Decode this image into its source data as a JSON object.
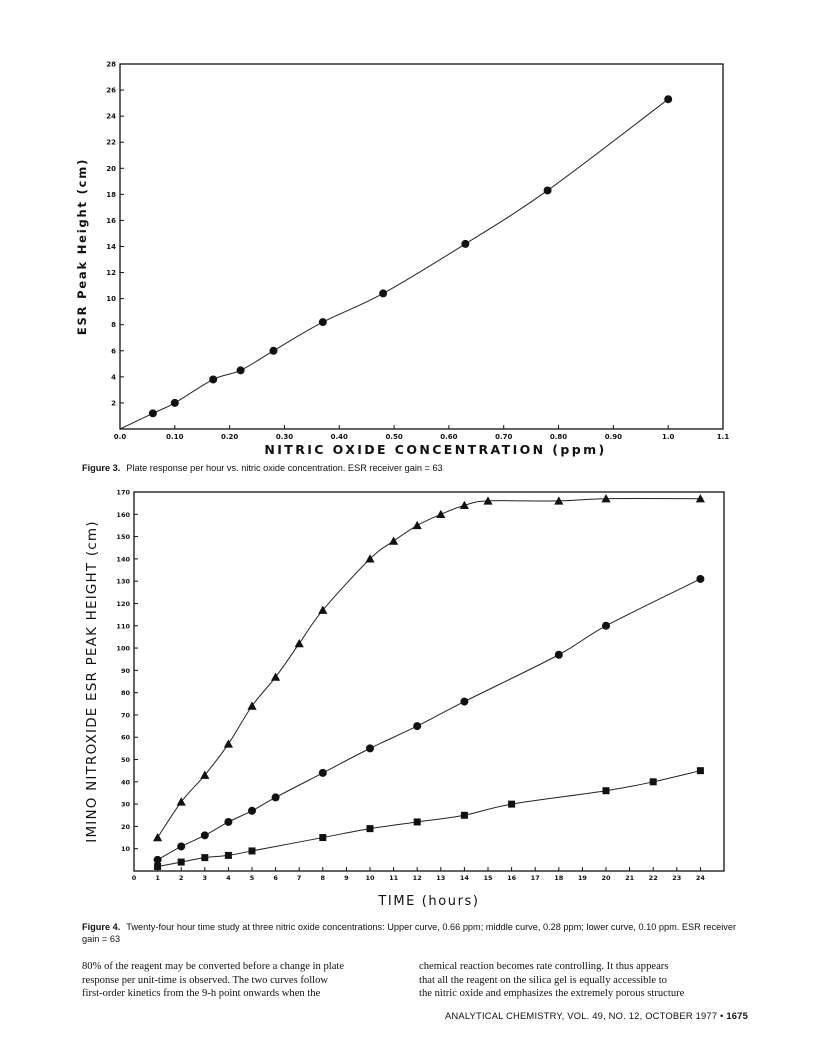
{
  "figure3": {
    "caption_label": "Figure 3.",
    "caption_text": "Plate response per hour vs. nitric oxide concentration. ESR receiver gain = 63"
  },
  "figure4": {
    "caption_label": "Figure 4.",
    "caption_text": "Twenty-four hour time study at three nitric oxide concentrations: Upper curve, 0.66 ppm; middle curve, 0.28 ppm; lower curve, 0.10 ppm. ESR receiver gain = 63"
  },
  "body": {
    "left_lines": [
      "80% of the reagent may be converted before a change in plate",
      "response per unit-time is observed. The two curves follow",
      "first-order kinetics from the 9-h point onwards when the"
    ],
    "right_lines": [
      "chemical reaction becomes rate controlling. It thus appears",
      "that all the reagent on the silica gel is equally accessible to",
      "the nitric oxide and emphasizes the extremely porous structure"
    ]
  },
  "footer": {
    "journal": "ANALYTICAL CHEMISTRY, VOL. 49, NO. 12, OCTOBER 1977 •",
    "page_number": "1675"
  },
  "chart_data": [
    {
      "type": "scatter",
      "xlabel": "NITRIC OXIDE CONCENTRATION (ppm)",
      "ylabel": "ESR Peak Height (cm)",
      "xlim": [
        0,
        1.1
      ],
      "ylim": [
        0,
        28
      ],
      "x_ticks": [
        "0.0",
        "0.10",
        "0.20",
        "0.30",
        "0.40",
        "0.50",
        "0.60",
        "0.70",
        "0.80",
        "0.90",
        "1.0",
        "1.1"
      ],
      "y_ticks": [
        "2",
        "4",
        "6",
        "8",
        "10",
        "12",
        "14",
        "16",
        "18",
        "20",
        "22",
        "24",
        "26",
        "28"
      ],
      "grid": false,
      "series": [
        {
          "marker": "circle",
          "x": [
            0.06,
            0.1,
            0.17,
            0.22,
            0.28,
            0.37,
            0.48,
            0.63,
            0.78,
            1.0
          ],
          "y": [
            1.2,
            2.0,
            3.8,
            4.5,
            6.0,
            8.2,
            10.4,
            14.2,
            18.3,
            25.3
          ]
        }
      ]
    },
    {
      "type": "line",
      "xlabel": "TIME (hours)",
      "ylabel": "IMINO NITROXIDE ESR PEAK HEIGHT (cm)",
      "xlim": [
        0,
        25
      ],
      "ylim": [
        0,
        170
      ],
      "x_ticks": [
        "0",
        "1",
        "2",
        "3",
        "4",
        "5",
        "6",
        "7",
        "8",
        "9",
        "10",
        "11",
        "12",
        "13",
        "14",
        "15",
        "16",
        "17",
        "18",
        "19",
        "20",
        "21",
        "22",
        "23",
        "24"
      ],
      "y_ticks": [
        "10",
        "20",
        "30",
        "40",
        "50",
        "60",
        "70",
        "80",
        "90",
        "100",
        "110",
        "120",
        "130",
        "140",
        "150",
        "160",
        "170"
      ],
      "grid": false,
      "series": [
        {
          "marker": "triangle",
          "x": [
            1,
            2,
            3,
            4,
            5,
            6,
            7,
            8,
            10,
            11,
            12,
            13,
            14,
            15,
            18,
            20,
            24
          ],
          "y": [
            15,
            31,
            43,
            57,
            74,
            87,
            102,
            117,
            140,
            148,
            155,
            160,
            164,
            166,
            166,
            167,
            167
          ]
        },
        {
          "marker": "circle",
          "x": [
            1,
            2,
            3,
            4,
            5,
            6,
            8,
            10,
            12,
            14,
            18,
            20,
            24
          ],
          "y": [
            5,
            11,
            16,
            22,
            27,
            33,
            44,
            55,
            65,
            76,
            97,
            110,
            131
          ]
        },
        {
          "marker": "square",
          "x": [
            1,
            2,
            3,
            4,
            5,
            8,
            10,
            12,
            14,
            16,
            20,
            22,
            24
          ],
          "y": [
            2,
            4,
            6,
            7,
            9,
            15,
            19,
            22,
            25,
            30,
            36,
            40,
            45
          ]
        }
      ]
    }
  ]
}
